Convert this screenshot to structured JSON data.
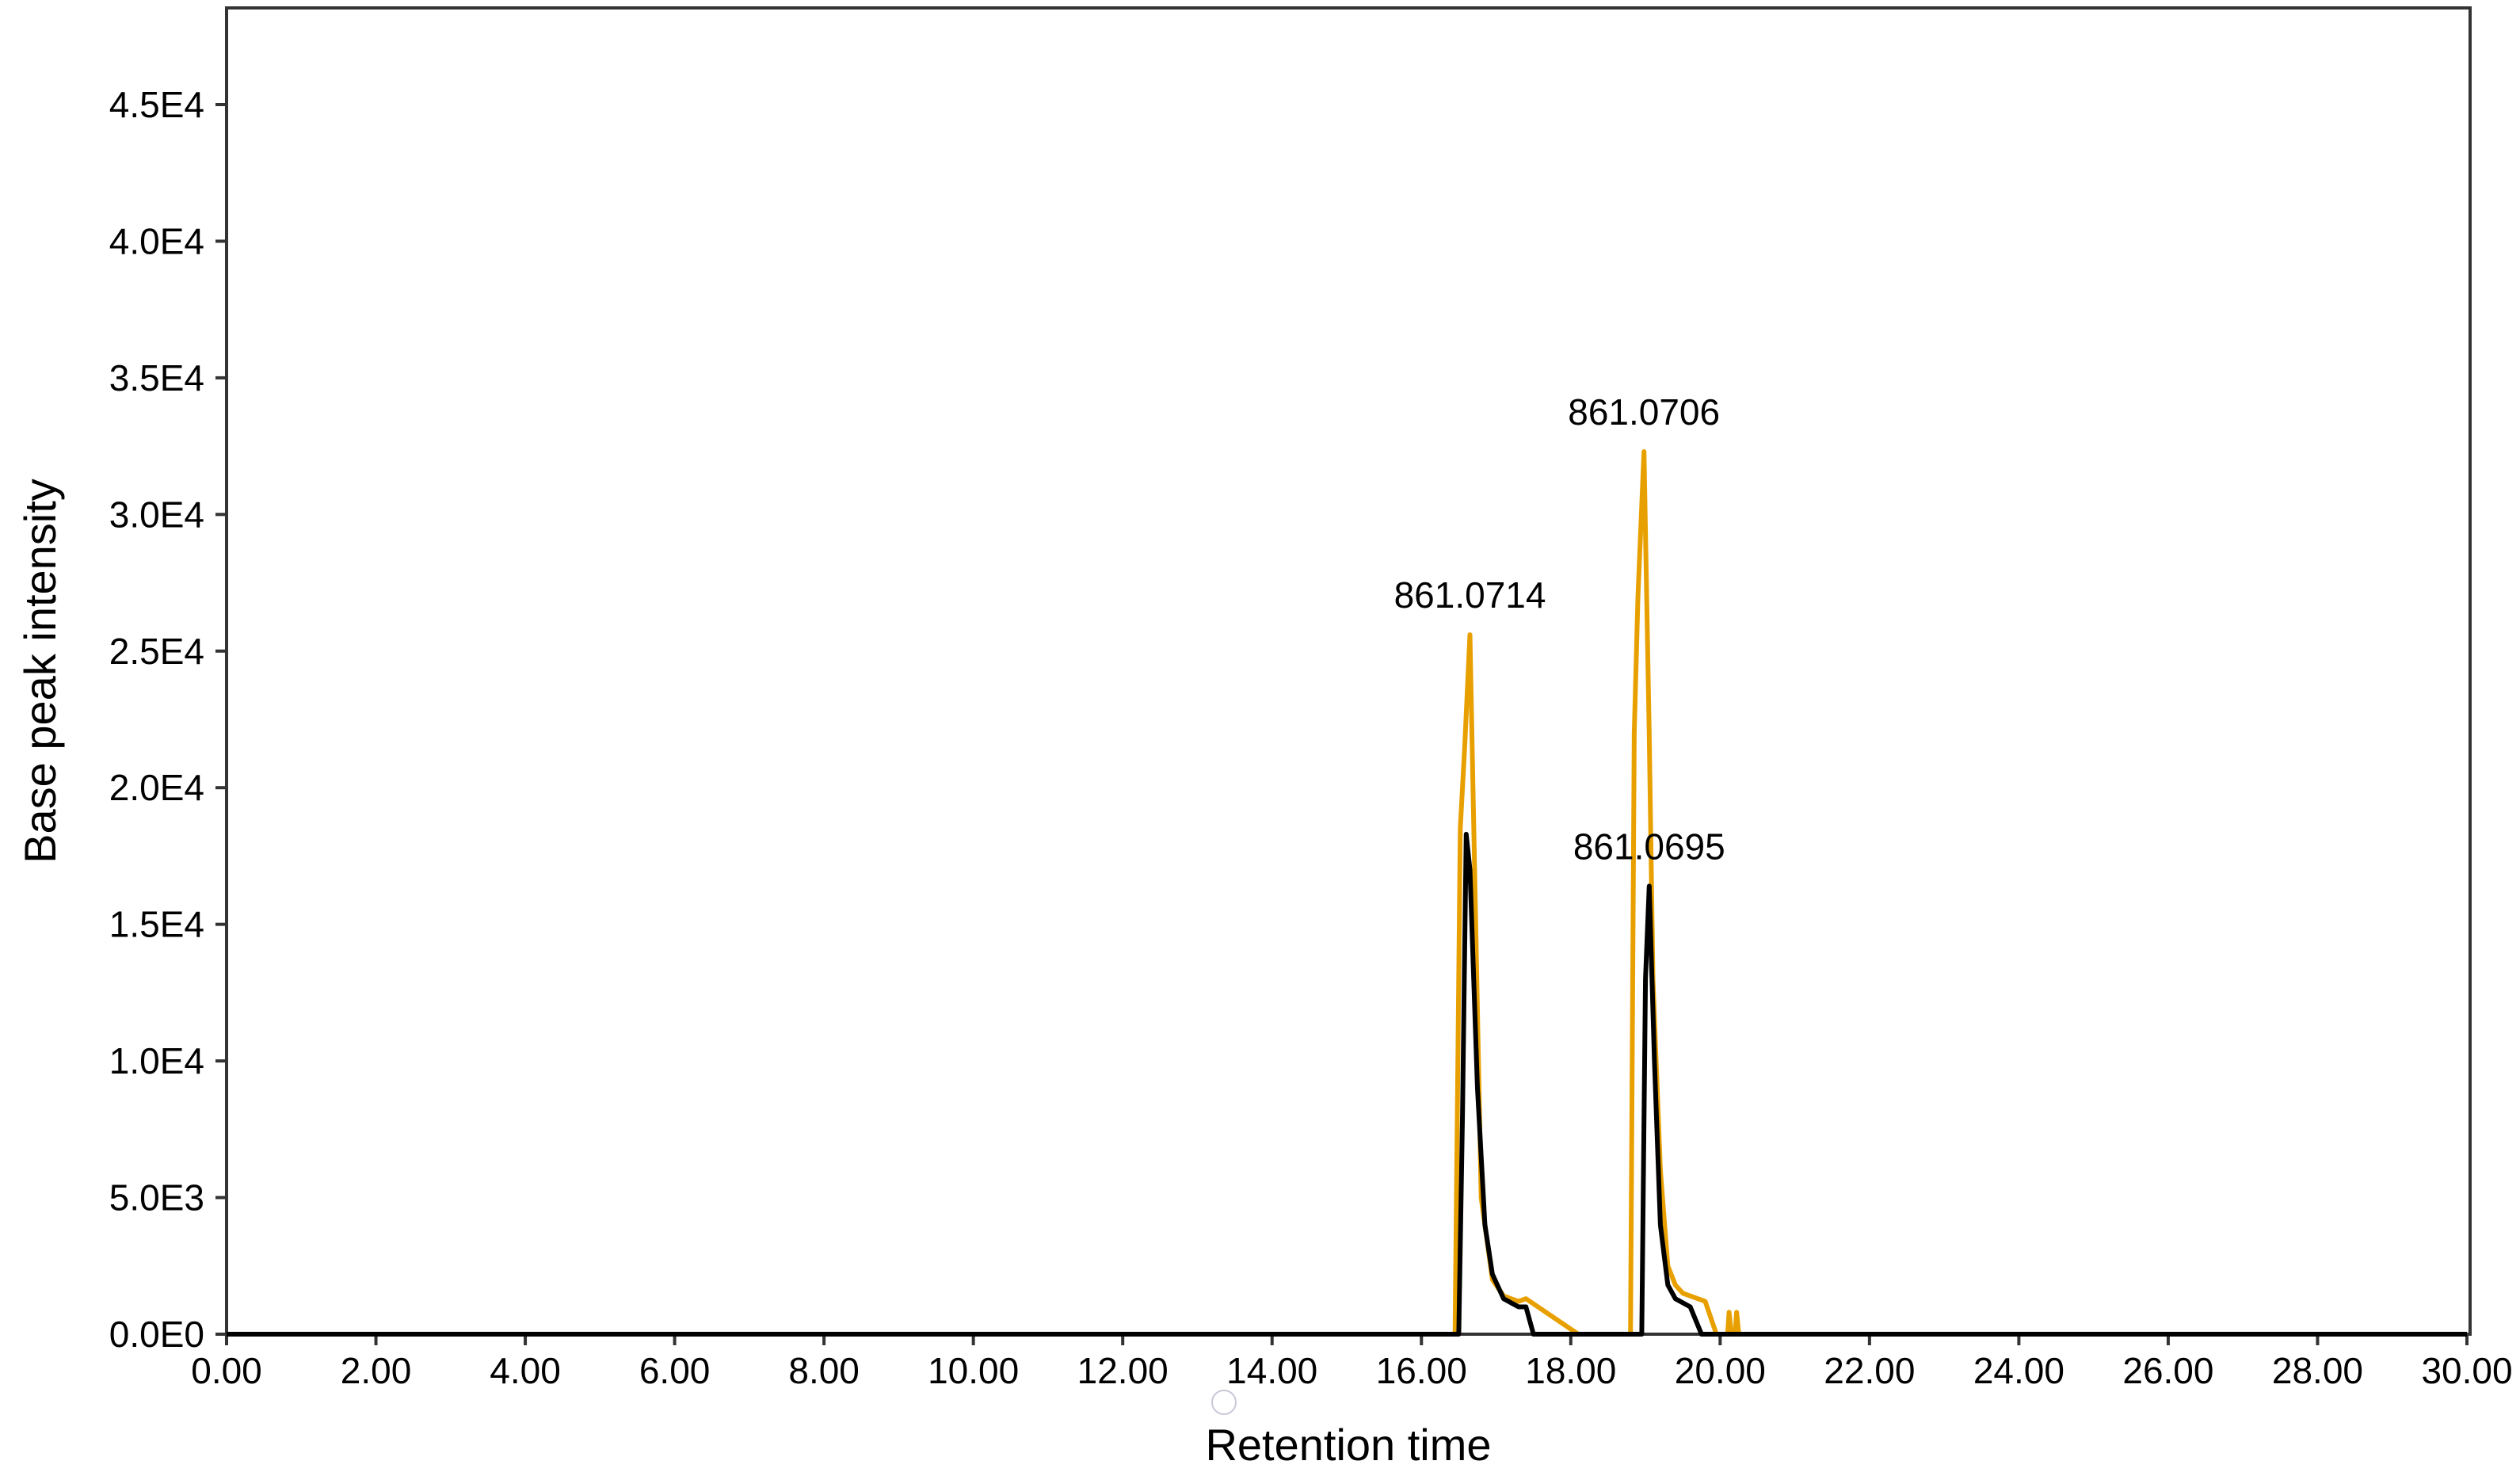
{
  "chart_data": {
    "type": "line",
    "title": "",
    "xlabel": "Retention time",
    "ylabel": "Base peak intensity",
    "xlim": [
      0,
      30
    ],
    "ylim": [
      0,
      48000
    ],
    "grid": false,
    "legend": null,
    "x_ticks": [
      "0.00",
      "2.00",
      "4.00",
      "6.00",
      "8.00",
      "10.00",
      "12.00",
      "14.00",
      "16.00",
      "18.00",
      "20.00",
      "22.00",
      "24.00",
      "26.00",
      "28.00",
      "30.00"
    ],
    "y_ticks": [
      "0.0E0",
      "5.0E3",
      "1.0E4",
      "1.5E4",
      "2.0E4",
      "2.5E4",
      "3.0E4",
      "3.5E4",
      "4.0E4",
      "4.5E4"
    ],
    "series": [
      {
        "name": "trace-orange",
        "color": "#E8A000",
        "points": [
          [
            0,
            0
          ],
          [
            16.35,
            0
          ],
          [
            16.45,
            0
          ],
          [
            16.52,
            18500
          ],
          [
            16.58,
            21500
          ],
          [
            16.65,
            25600
          ],
          [
            16.72,
            16000
          ],
          [
            16.8,
            5000
          ],
          [
            16.95,
            2000
          ],
          [
            17.1,
            1400
          ],
          [
            17.3,
            1200
          ],
          [
            17.4,
            1300
          ],
          [
            18.1,
            0
          ],
          [
            18.7,
            0
          ],
          [
            18.8,
            0
          ],
          [
            18.85,
            22000
          ],
          [
            18.9,
            27000
          ],
          [
            18.98,
            32300
          ],
          [
            19.05,
            22000
          ],
          [
            19.1,
            13000
          ],
          [
            19.2,
            6000
          ],
          [
            19.3,
            2500
          ],
          [
            19.4,
            1800
          ],
          [
            19.5,
            1500
          ],
          [
            19.8,
            1200
          ],
          [
            19.95,
            0
          ],
          [
            20.1,
            0
          ],
          [
            20.12,
            800
          ],
          [
            20.15,
            0
          ],
          [
            20.2,
            0
          ],
          [
            20.22,
            800
          ],
          [
            20.25,
            0
          ],
          [
            20.3,
            0
          ],
          [
            30,
            0
          ]
        ]
      },
      {
        "name": "trace-black",
        "color": "#000000",
        "points": [
          [
            0,
            0
          ],
          [
            16.4,
            0
          ],
          [
            16.5,
            0
          ],
          [
            16.55,
            8000
          ],
          [
            16.6,
            18300
          ],
          [
            16.65,
            17000
          ],
          [
            16.75,
            9000
          ],
          [
            16.85,
            4000
          ],
          [
            16.95,
            2200
          ],
          [
            17.1,
            1300
          ],
          [
            17.3,
            1000
          ],
          [
            17.4,
            1000
          ],
          [
            17.5,
            0
          ],
          [
            18.0,
            0
          ],
          [
            18.8,
            0
          ],
          [
            18.95,
            0
          ],
          [
            19.0,
            13000
          ],
          [
            19.05,
            16400
          ],
          [
            19.12,
            10000
          ],
          [
            19.2,
            4000
          ],
          [
            19.3,
            1800
          ],
          [
            19.4,
            1300
          ],
          [
            19.6,
            1000
          ],
          [
            19.75,
            0
          ],
          [
            30,
            0
          ]
        ]
      }
    ],
    "annotations": [
      {
        "text": "861.0714",
        "x": 16.65,
        "y": 25600
      },
      {
        "text": "861.0706",
        "x": 18.98,
        "y": 32300
      },
      {
        "text": "861.0695",
        "x": 19.05,
        "y": 16400
      }
    ]
  },
  "labels": {
    "xlabel": "Retention time",
    "ylabel": "Base peak intensity",
    "annotations": [
      "861.0714",
      "861.0706",
      "861.0695"
    ],
    "x_ticks": [
      "0.00",
      "2.00",
      "4.00",
      "6.00",
      "8.00",
      "10.00",
      "12.00",
      "14.00",
      "16.00",
      "18.00",
      "20.00",
      "22.00",
      "24.00",
      "26.00",
      "28.00",
      "30.00"
    ],
    "y_ticks": [
      "0.0E0",
      "5.0E3",
      "1.0E4",
      "1.5E4",
      "2.0E4",
      "2.5E4",
      "3.0E4",
      "3.5E4",
      "4.0E4",
      "4.5E4"
    ]
  },
  "cursor": {
    "icon": "cursor-circle-icon"
  }
}
